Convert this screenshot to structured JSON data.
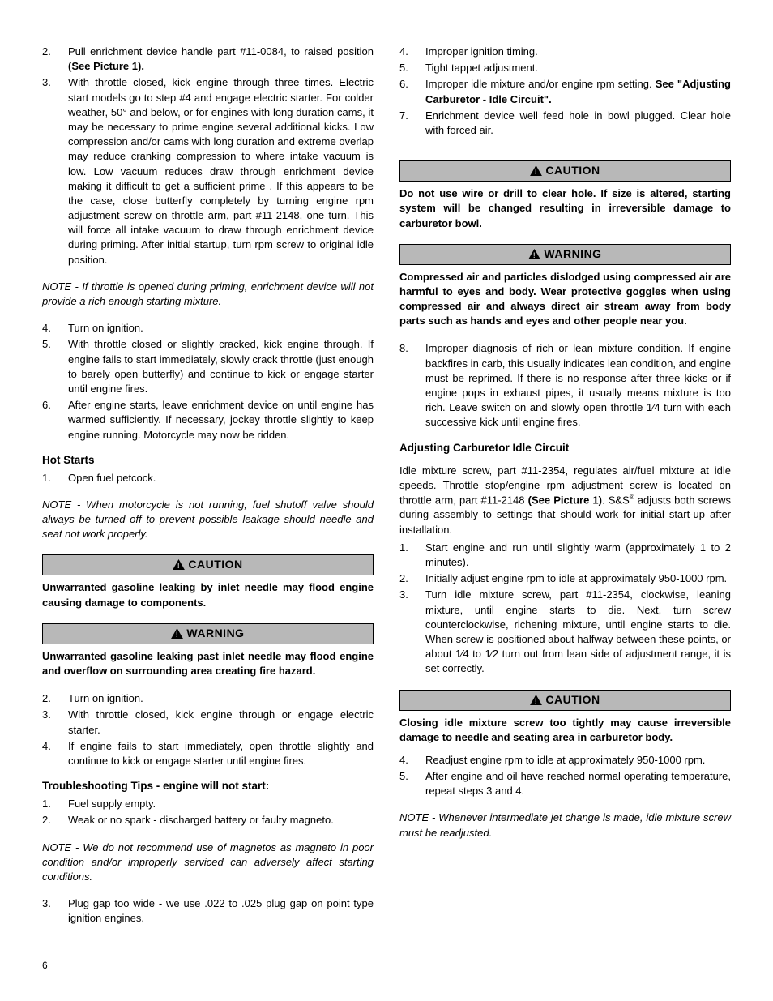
{
  "left": {
    "list1": [
      {
        "n": "2.",
        "t": "Pull enrichment device handle part #11-0084, to raised position <b>(See Picture 1).</b>"
      },
      {
        "n": "3.",
        "t": "With throttle closed, kick engine through three times. Electric start models go to step #4 and engage electric starter. For colder weather, 50° and below, or for engines with long duration cams, it may be necessary to prime engine several additional kicks.  Low compression and/or cams with long duration and extreme overlap may reduce cranking compression to where intake vacuum is low.  Low vacuum reduces draw through enrichment device making it difficult to get a sufficient prime .  If this appears to be the case, close butterfly completely by turning engine rpm adjustment screw on throttle arm, part #11-2148, one turn.  This will force all intake vacuum to draw through enrichment device during priming.  After initial startup, turn rpm screw to original idle position."
      }
    ],
    "note1": "NOTE - If throttle is opened during priming, enrichment device will not provide a rich enough starting mixture.",
    "list2": [
      {
        "n": "4.",
        "t": "Turn on ignition."
      },
      {
        "n": "5.",
        "t": "With throttle closed or slightly cracked, kick engine through. If engine fails to start immediately, slowly crack throttle (just enough to barely open butterfly) and continue to kick or engage starter until engine fires."
      },
      {
        "n": "6.",
        "t": "After engine starts, leave enrichment device on until engine has warmed sufficiently.  If necessary, jockey throttle slightly to keep engine running.  Motorcycle may now be ridden."
      }
    ],
    "hotstarts_head": "Hot Starts",
    "hotstarts_list1": [
      {
        "n": "1.",
        "t": "Open fuel petcock."
      }
    ],
    "note2": "NOTE - When motorcycle is not running, fuel shutoff valve should always be turned off to prevent possible leakage should needle and seat not work properly.",
    "caution1_label": "CAUTION",
    "caution1_text": "Unwarranted gasoline leaking by inlet needle may flood engine causing damage to components.",
    "warning1_label": "WARNING",
    "warning1_text": "Unwarranted gasoline leaking past inlet needle may flood engine and overflow on surrounding area creating fire hazard.",
    "list3": [
      {
        "n": "2.",
        "t": "Turn on ignition."
      },
      {
        "n": "3.",
        "t": "With throttle closed, kick engine through or engage electric starter."
      },
      {
        "n": "4.",
        "t": "If engine fails to start immediately, open throttle slightly and continue to kick or engage starter until engine fires."
      }
    ],
    "trouble_head": "Troubleshooting Tips - engine will not start:",
    "trouble_list1": [
      {
        "n": "1.",
        "t": "Fuel supply empty."
      },
      {
        "n": "2.",
        "t": "Weak or no spark - discharged battery or faulty magneto."
      }
    ],
    "note3": "NOTE - We do not recommend use of magnetos as magneto in poor condition and/or improperly serviced can adversely affect starting conditions.",
    "trouble_list2": [
      {
        "n": "3.",
        "t": "Plug gap too wide - we use .022 to .025 plug gap on point type ignition engines."
      }
    ]
  },
  "right": {
    "list1": [
      {
        "n": "4.",
        "t": "Improper ignition timing."
      },
      {
        "n": "5.",
        "t": "Tight tappet adjustment."
      },
      {
        "n": "6.",
        "t": "Improper idle mixture and/or engine rpm setting. <b>See \"Adjusting Carburetor - Idle Circuit\".</b>"
      },
      {
        "n": "7.",
        "t": "Enrichment device well feed hole in bowl plugged.  Clear hole with forced air."
      }
    ],
    "caution1_label": "CAUTION",
    "caution1_text": "Do not use wire or drill to clear hole.  If size is altered, starting system will be changed resulting in irreversible damage to carburetor bowl.",
    "warning1_label": "WARNING",
    "warning1_text": "Compressed air and particles dislodged using compressed air are harmful to eyes and body.  Wear protective goggles when using compressed air and always direct air stream away from body parts such as hands and eyes and other people near you.",
    "list2": [
      {
        "n": "8.",
        "t": "Improper diagnosis of rich or lean mixture condition.  If engine backfires in carb, this usually indicates lean condition, and engine must be reprimed. If there is no response after three kicks or if engine pops in exhaust pipes, it usually means mixture is too rich.  Leave switch on and slowly open throttle 1⁄4  turn with each successive kick until engine fires."
      }
    ],
    "adjust_head": "Adjusting Carburetor Idle Circuit",
    "adjust_para": "Idle mixture screw, part #11-2354, regulates air/fuel mixture at idle speeds.  Throttle stop/engine rpm adjustment screw is located on throttle arm, part #11-2148 <b>(See Picture 1)</b>.  S&S<sup style='font-size:8px'>®</sup> adjusts both screws during assembly to settings that should work for initial start-up after installation.",
    "adjust_list1": [
      {
        "n": "1.",
        "t": "Start engine and run until slightly warm (approximately 1 to 2 minutes)."
      },
      {
        "n": "2.",
        "t": "Initially adjust engine rpm to idle at approximately 950-1000 rpm."
      },
      {
        "n": "3.",
        "t": "Turn idle mixture screw, part #11-2354, clockwise, leaning mixture, until engine starts to die.  Next, turn screw counterclockwise, richening mixture, until engine starts to die.  When screw is positioned about halfway between these points, or about 1⁄4  to 1⁄2   turn out from lean side of adjustment range, it is set correctly."
      }
    ],
    "caution2_label": "CAUTION",
    "caution2_text": "Closing idle mixture screw too tightly may cause irreversible damage to needle and seating area in carburetor body.",
    "adjust_list2": [
      {
        "n": "4.",
        "t": "Readjust engine rpm to idle at approximately 950-1000 rpm."
      },
      {
        "n": "5.",
        "t": "After engine and oil have reached normal operating temperature, repeat steps 3 and 4."
      }
    ],
    "note1": "NOTE - Whenever intermediate jet change is made, idle mixture screw must be readjusted."
  },
  "pagenum": "6",
  "colors": {
    "callout_bg": "#b8b8b8",
    "text": "#000000",
    "bg": "#ffffff"
  }
}
